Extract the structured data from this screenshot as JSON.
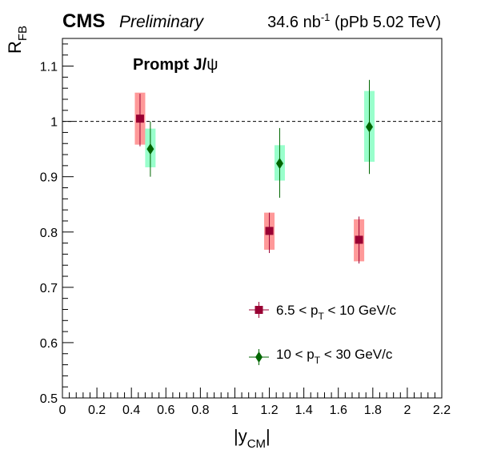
{
  "header": {
    "experiment": "CMS",
    "status": "Preliminary",
    "lumi_value": "34.6 nb",
    "lumi_exp": "-1",
    "lumi_rest": " (pPb 5.02 TeV)"
  },
  "annotation": {
    "main": "Prompt J/",
    "symbol": "ψ"
  },
  "axes": {
    "y_main": "R",
    "y_sub": "FB",
    "x_pre": "|y",
    "x_sub": "CM",
    "x_post": "|"
  },
  "legend": [
    {
      "pre": "6.5 < p",
      "sub": "T",
      "post": " < 10 GeV/c"
    },
    {
      "pre": "10 < p",
      "sub": "T",
      "post": " < 30 GeV/c"
    }
  ],
  "chart_data": {
    "type": "scatter",
    "title": "",
    "xlabel": "|y_CM|",
    "ylabel": "R_FB",
    "xlim": [
      0,
      2.2
    ],
    "ylim": [
      0.5,
      1.15
    ],
    "x_ticks": [
      "0",
      "0.2",
      "0.4",
      "0.6",
      "0.8",
      "1",
      "1.2",
      "1.4",
      "1.6",
      "1.8",
      "2",
      "2.2"
    ],
    "y_ticks": [
      "0.5",
      "0.6",
      "0.7",
      "0.8",
      "0.9",
      "1",
      "1.1"
    ],
    "reference_line": 1.0,
    "series": [
      {
        "name": "6.5 < p_T < 10 GeV/c",
        "marker": "square",
        "color": "#990033",
        "box_color": "#ff9999",
        "points": [
          {
            "x": 0.45,
            "y": 1.005,
            "stat_lo": 0.955,
            "stat_hi": 1.05,
            "sys_lo": 0.958,
            "sys_hi": 1.052
          },
          {
            "x": 1.2,
            "y": 0.802,
            "stat_lo": 0.762,
            "stat_hi": 0.835,
            "sys_lo": 0.768,
            "sys_hi": 0.835
          },
          {
            "x": 1.72,
            "y": 0.786,
            "stat_lo": 0.743,
            "stat_hi": 0.828,
            "sys_lo": 0.747,
            "sys_hi": 0.823
          }
        ]
      },
      {
        "name": "10 < p_T < 30 GeV/c",
        "marker": "diamond",
        "color": "#006600",
        "box_color": "#99ffcc",
        "points": [
          {
            "x": 0.51,
            "y": 0.95,
            "stat_lo": 0.9,
            "stat_hi": 1.0,
            "sys_lo": 0.917,
            "sys_hi": 0.987
          },
          {
            "x": 1.26,
            "y": 0.924,
            "stat_lo": 0.862,
            "stat_hi": 0.988,
            "sys_lo": 0.893,
            "sys_hi": 0.957
          },
          {
            "x": 1.78,
            "y": 0.99,
            "stat_lo": 0.905,
            "stat_hi": 1.075,
            "sys_lo": 0.927,
            "sys_hi": 1.055
          }
        ]
      }
    ]
  }
}
